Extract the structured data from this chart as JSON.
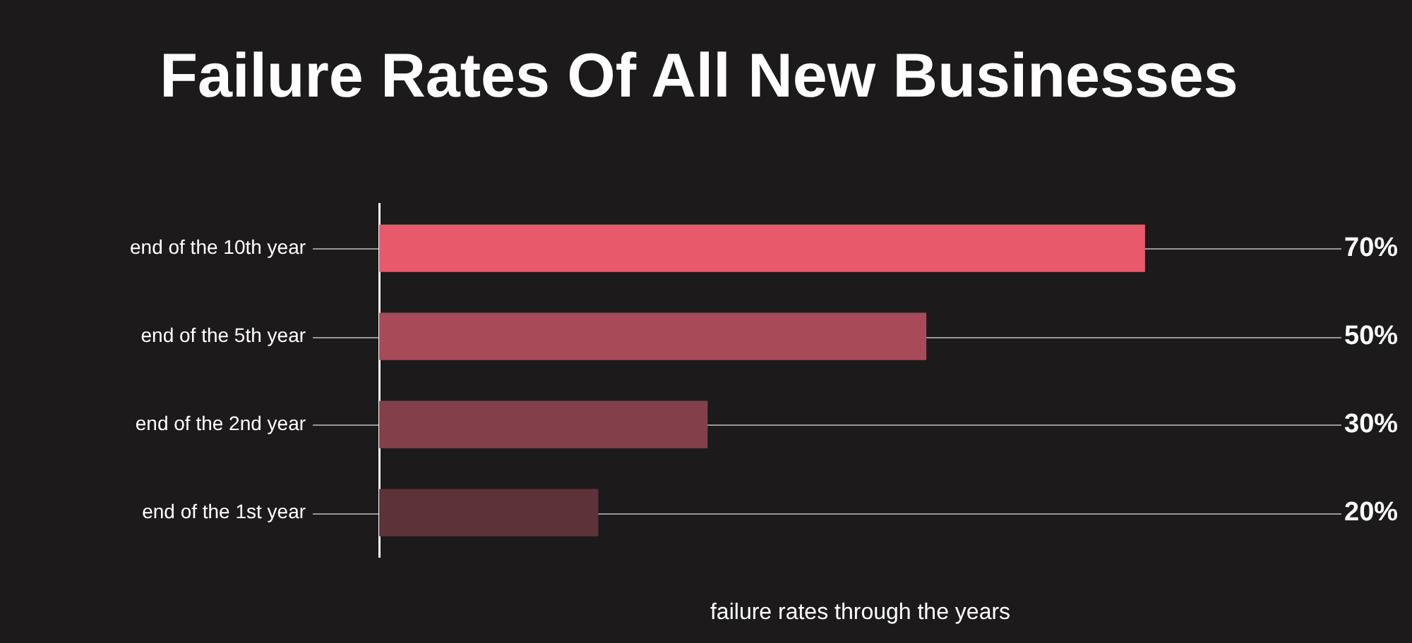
{
  "chart_data": {
    "type": "bar",
    "orientation": "horizontal",
    "title": "Failure Rates Of All New Businesses",
    "xlabel": "failure rates through the years",
    "categories": [
      "end of the 10th year",
      "end of the 5th year",
      "end of the 2nd year",
      "end of the 1st year"
    ],
    "values": [
      70,
      50,
      30,
      20
    ],
    "colors": [
      "#e85a6b",
      "#a84a58",
      "#83404b",
      "#5e3239"
    ],
    "value_labels": [
      "70%",
      "50%",
      "30%",
      "20%"
    ],
    "xlim": [
      0,
      88
    ],
    "tick_labels": "y",
    "grid": "y",
    "legend": false
  }
}
